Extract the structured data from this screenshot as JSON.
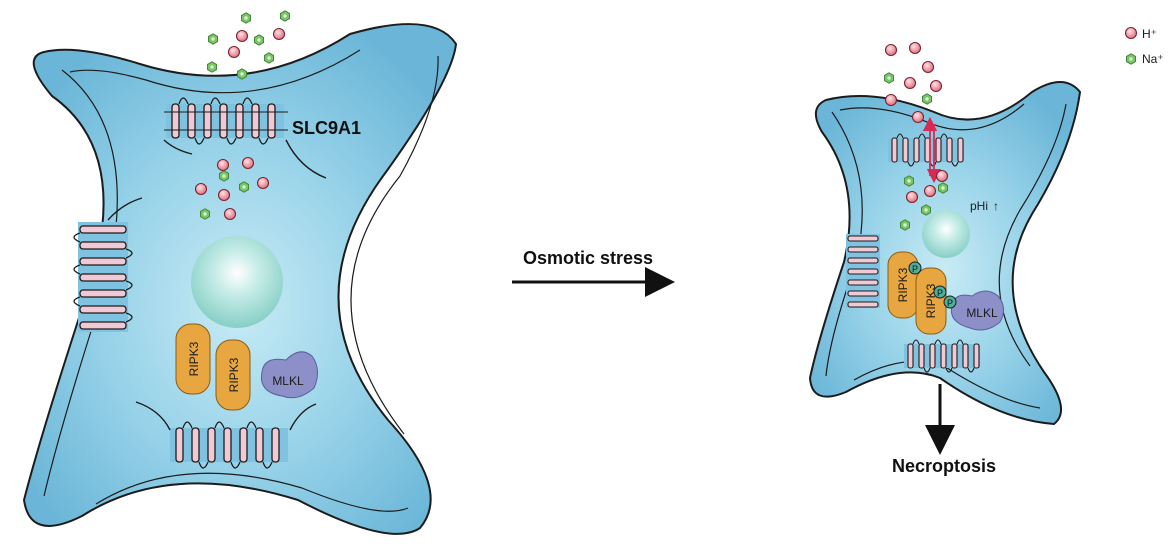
{
  "legend": {
    "h_label": "H⁺",
    "na_label": "Na⁺"
  },
  "left_cell": {
    "transporter_label": "SLC9A1",
    "kinase_1": "RIPK3",
    "kinase_2": "RIPK3",
    "effector": "MLKL"
  },
  "transition": {
    "stimulus_label": "Osmotic stress"
  },
  "right_cell": {
    "kinase_1": "RIPK3",
    "kinase_2": "RIPK3",
    "effector": "MLKL",
    "phospho_label": "P",
    "ph_label": "pHi",
    "ph_arrow": "↑",
    "outcome_label": "Necroptosis"
  },
  "colors": {
    "cell_fill": "#7fc3e0",
    "cell_outline": "#1c1c1c",
    "nucleus": "#9fd8d2",
    "kinase": "#e7a63f",
    "effector": "#8d8fc9",
    "proton": "#e58190",
    "sodium": "#7cc46a",
    "channel": "#f1c9d5",
    "flux_arrow": "#d92a54"
  }
}
